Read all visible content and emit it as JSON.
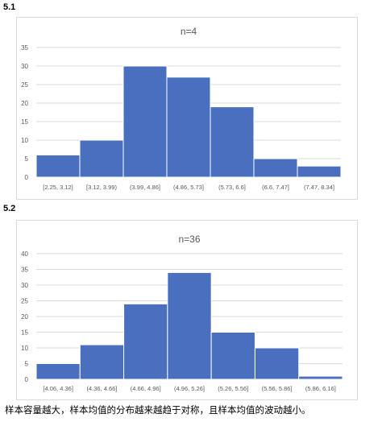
{
  "sections": [
    {
      "label": "5.1"
    },
    {
      "label": "5.2"
    }
  ],
  "chart_data": [
    {
      "type": "bar",
      "title": "n=4",
      "categories": [
        "[2.25, 3.12]",
        "[3.12, 3.99)",
        "(3.99, 4.86]",
        "(4.86, 5.73]",
        "(5.73, 6.6]",
        "(6.6, 7.47]",
        "(7.47, 8.34]"
      ],
      "values": [
        6,
        10,
        30,
        27,
        19,
        5,
        3
      ],
      "ylim": [
        0,
        35
      ],
      "yticks": [
        0,
        5,
        10,
        15,
        20,
        25,
        30,
        35
      ],
      "xlabel": "",
      "ylabel": "",
      "grid": true,
      "bar_color": "#4a6fbf"
    },
    {
      "type": "bar",
      "title": "n=36",
      "categories": [
        "[4.06, 4.36]",
        "(4.36, 4.66]",
        "(4.66, 4.96]",
        "(4.96, 5.26]",
        "(5.26, 5.56]",
        "(5.56, 5.86]",
        "(5.86, 6.16]"
      ],
      "values": [
        5,
        11,
        24,
        34,
        15,
        10,
        1
      ],
      "ylim": [
        0,
        40
      ],
      "yticks": [
        0,
        5,
        10,
        15,
        20,
        25,
        30,
        35,
        40
      ],
      "xlabel": "",
      "ylabel": "",
      "grid": true,
      "bar_color": "#4a6fbf"
    }
  ],
  "conclusion": "样本容量越大，样本均值的分布越来越趋于对称，且样本均值的波动越小。"
}
